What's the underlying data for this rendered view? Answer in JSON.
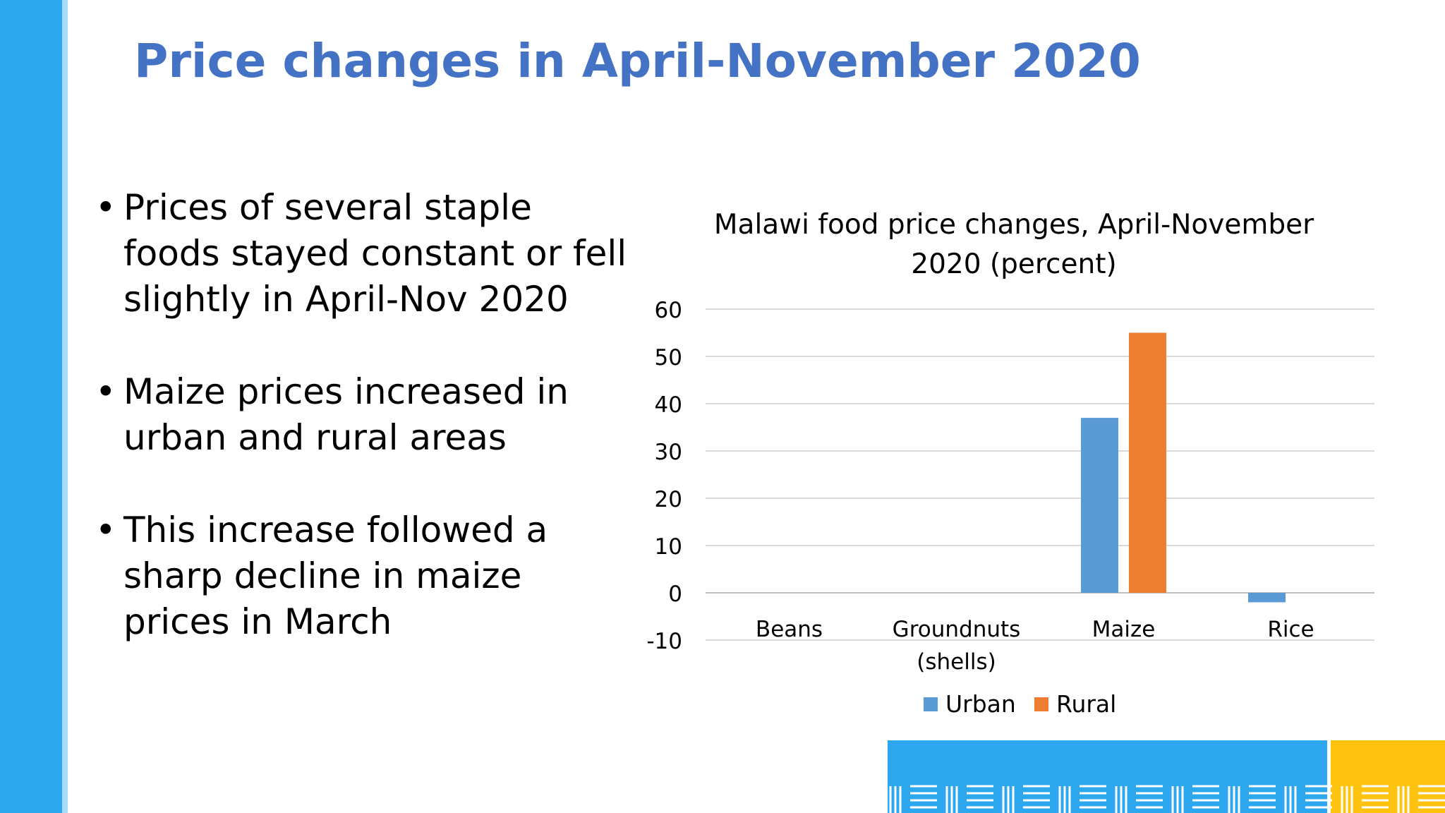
{
  "slide": {
    "title": "Price changes in April-November 2020",
    "bullets": [
      "Prices of several staple foods stayed constant or fell slightly in April-Nov 2020",
      "Maize prices increased in urban and rural areas",
      "This increase followed a sharp decline in maize prices in March"
    ]
  },
  "colors": {
    "title": "#4472c4",
    "urban": "#5b9bd5",
    "rural": "#ed7d31",
    "side_bar": "#2da8ee",
    "footer_blue": "#2da8ee",
    "footer_yellow": "#ffc20e"
  },
  "chart_data": {
    "type": "bar",
    "title_lines": [
      "Malawi food price changes, April-November",
      "2020 (percent)"
    ],
    "categories": [
      [
        "Beans"
      ],
      [
        "Groundnuts",
        "(shells)"
      ],
      [
        "Maize"
      ],
      [
        "Rice"
      ]
    ],
    "series": [
      {
        "name": "Urban",
        "values": [
          0,
          0,
          37,
          -2
        ]
      },
      {
        "name": "Rural",
        "values": [
          0,
          0,
          55,
          0
        ]
      }
    ],
    "ylim": [
      -10,
      60
    ],
    "yticks": [
      60,
      50,
      40,
      30,
      20,
      10,
      0,
      -10
    ],
    "grid": true,
    "legend": "bottom"
  }
}
